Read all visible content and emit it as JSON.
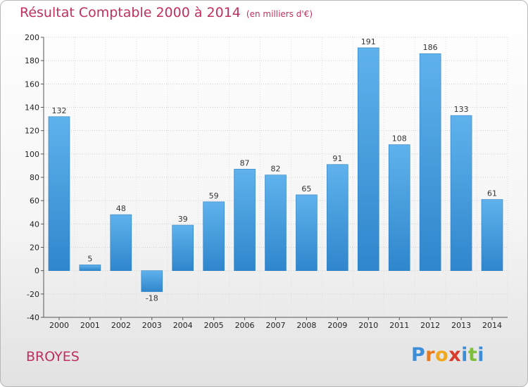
{
  "header": {
    "title": "Résultat Comptable 2000 à 2014",
    "unit": "(en milliers d'€)"
  },
  "place": "BROYES",
  "logo": {
    "text": "Proxiti"
  },
  "colors": {
    "bar": "#3a96dc",
    "bar_light": "#5aaee8",
    "title": "#c0305f"
  },
  "chart_data": {
    "type": "bar",
    "title": "Résultat Comptable 2000 à 2014",
    "subtitle": "(en milliers d'€)",
    "categories": [
      "2000",
      "2001",
      "2002",
      "2003",
      "2004",
      "2005",
      "2006",
      "2007",
      "2008",
      "2009",
      "2010",
      "2011",
      "2012",
      "2013",
      "2014"
    ],
    "values": [
      132,
      5,
      48,
      -18,
      39,
      59,
      87,
      82,
      65,
      91,
      191,
      108,
      186,
      133,
      61
    ],
    "ylim": [
      -40,
      200
    ],
    "yticks": [
      -40,
      -20,
      0,
      20,
      40,
      60,
      80,
      100,
      120,
      140,
      160,
      180,
      200
    ],
    "grid": true,
    "legend": "none"
  }
}
